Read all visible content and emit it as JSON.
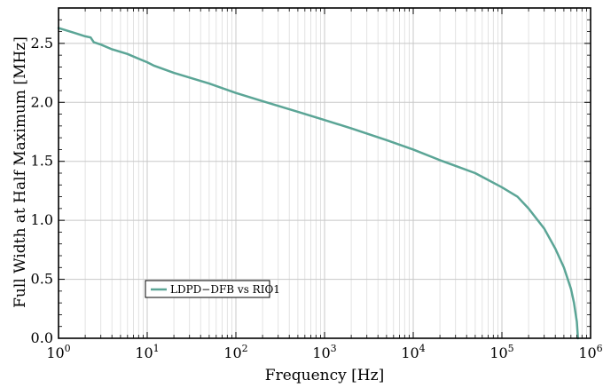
{
  "chart_data": {
    "type": "line",
    "title": "",
    "xlabel": "Frequency [Hz]",
    "ylabel": "Full Width at Half Maximum [MHz]",
    "xscale": "log",
    "xlim": [
      1,
      1000000
    ],
    "ylim": [
      0,
      2.8
    ],
    "grid": true,
    "legend": "lower-left",
    "x_ticks": [
      {
        "value": 1,
        "base": "10",
        "exp": "0"
      },
      {
        "value": 10,
        "base": "10",
        "exp": "1"
      },
      {
        "value": 100,
        "base": "10",
        "exp": "2"
      },
      {
        "value": 1000,
        "base": "10",
        "exp": "3"
      },
      {
        "value": 10000,
        "base": "10",
        "exp": "4"
      },
      {
        "value": 100000,
        "base": "10",
        "exp": "5"
      },
      {
        "value": 1000000,
        "base": "10",
        "exp": "6"
      }
    ],
    "y_ticks": [
      {
        "value": 0,
        "label": "0.0"
      },
      {
        "value": 0.5,
        "label": "0.5"
      },
      {
        "value": 1.0,
        "label": "1.0"
      },
      {
        "value": 1.5,
        "label": "1.5"
      },
      {
        "value": 2.0,
        "label": "2.0"
      },
      {
        "value": 2.5,
        "label": "2.5"
      }
    ],
    "series": [
      {
        "name": "LDPD−DFB vs RIO1",
        "color": "#5ba596",
        "x": [
          1,
          1.5,
          2,
          2.3,
          2.5,
          3,
          4,
          6,
          8,
          10,
          12,
          20,
          50,
          100,
          200,
          500,
          1000,
          2000,
          5000,
          10000,
          20000,
          50000,
          100000,
          150000,
          200000,
          300000,
          400000,
          500000,
          600000,
          650000,
          700000,
          720000
        ],
        "y": [
          2.63,
          2.59,
          2.56,
          2.55,
          2.51,
          2.49,
          2.45,
          2.41,
          2.37,
          2.34,
          2.31,
          2.25,
          2.16,
          2.08,
          2.01,
          1.92,
          1.85,
          1.78,
          1.68,
          1.6,
          1.51,
          1.4,
          1.28,
          1.2,
          1.1,
          0.93,
          0.76,
          0.6,
          0.42,
          0.3,
          0.14,
          0.0
        ]
      }
    ]
  }
}
